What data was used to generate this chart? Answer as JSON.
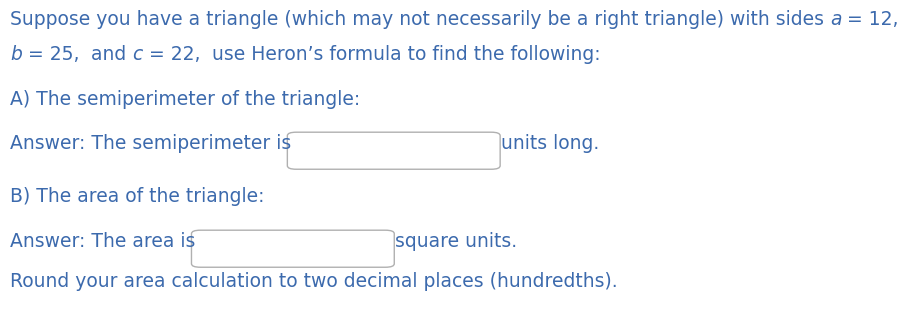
{
  "bg_color": "#ffffff",
  "blue": "#3c6aad",
  "line1a": "Suppose you have a triangle (which may not necessarily be a right triangle) with sides ",
  "line1b": "a",
  "line1c": " = 12,",
  "line2a": "b",
  "line2b": " = 25,",
  "line2c": "  and ",
  "line2d": "c",
  "line2e": " = 22,",
  "line2f": "  use Heron’s formula to find the following:",
  "section_a": "A) The semiperimeter of the triangle:",
  "ans_a_pre": "Answer: The semiperimeter is",
  "ans_a_post": "units long.",
  "section_b": "B) The area of the triangle:",
  "ans_b_pre": "Answer: The area is",
  "ans_b_post": "square units.",
  "ans_b_round": "Round your area calculation to two decimal places (hundredths).",
  "box_edge": "#b0b0b0",
  "box_face": "#ffffff",
  "font_size": 13.5
}
